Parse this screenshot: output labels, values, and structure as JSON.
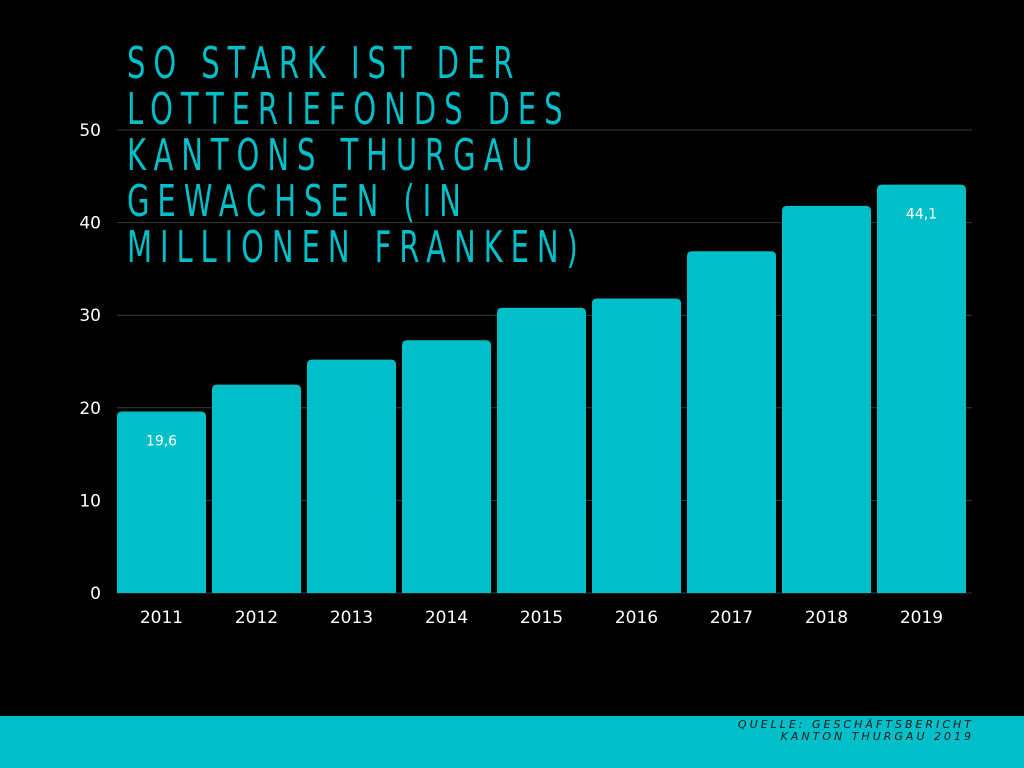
{
  "title": "So stark ist der Lotteriefonds des Kantons Thurgau gewachsen (in Millionen Franken)",
  "source": "Quelle: Geschäftsbericht Kanton Thurgau 2019",
  "colors": {
    "background": "#000000",
    "accent": "#00BFC8",
    "grid": "#3A3A3A",
    "text": "#FFFFFF",
    "source_text": "#1A1A1A"
  },
  "chart_data": {
    "type": "bar",
    "categories": [
      "2011",
      "2012",
      "2013",
      "2014",
      "2015",
      "2016",
      "2017",
      "2018",
      "2019"
    ],
    "values": [
      19.6,
      22.5,
      25.2,
      27.3,
      30.8,
      31.8,
      36.9,
      41.8,
      44.1
    ],
    "data_labels": {
      "0": "19,6",
      "8": "44,1"
    },
    "yticks": [
      0,
      10,
      20,
      30,
      40,
      50
    ],
    "ylim": [
      0,
      50
    ],
    "grid": true,
    "legend": false,
    "title": "So stark ist der Lotteriefonds des Kantons Thurgau gewachsen (in Millionen Franken)",
    "xlabel": "",
    "ylabel": ""
  }
}
